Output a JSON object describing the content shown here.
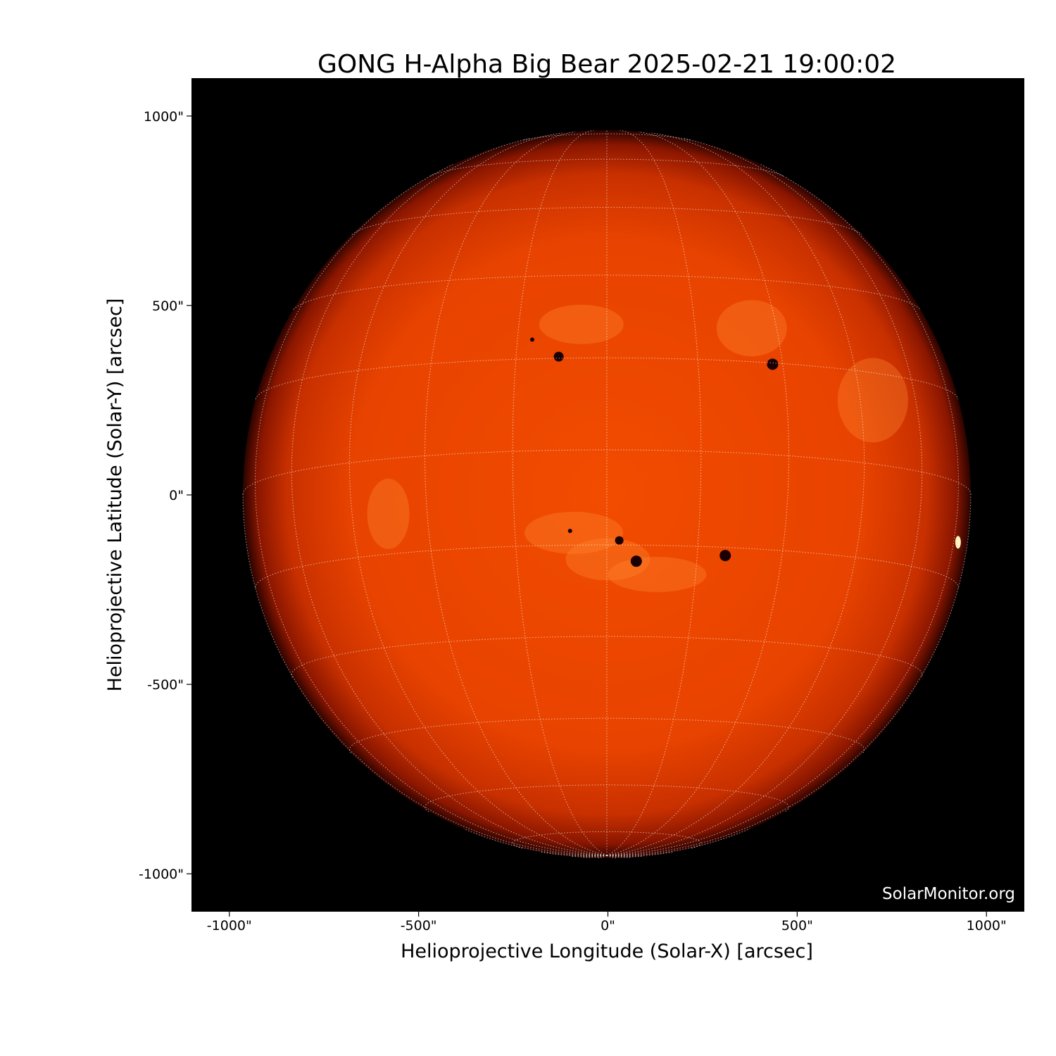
{
  "chart_data": {
    "type": "image",
    "title": "GONG H-Alpha Big Bear 2025-02-21 19:00:02",
    "xlabel": "Helioprojective Longitude (Solar-X) [arcsec]",
    "ylabel": "Helioprojective Latitude (Solar-Y) [arcsec]",
    "xlim": [
      -1100,
      1100
    ],
    "ylim": [
      -1100,
      1100
    ],
    "x_ticks": [
      -1000,
      -500,
      0,
      500,
      1000
    ],
    "y_ticks": [
      -1000,
      -500,
      0,
      500,
      1000
    ],
    "x_tick_labels": [
      "-1000\"",
      "-500\"",
      "0\"",
      "500\"",
      "1000\""
    ],
    "y_tick_labels": [
      "-1000\"",
      "-500\"",
      "0\"",
      "500\"",
      "1000\""
    ],
    "grid": true,
    "grid_style": "heliographic lat/lon, dotted white",
    "colormap": "red-orange H-alpha",
    "colors": {
      "background": "#000000",
      "disk_center": "#f04a00",
      "disk_limb": "#5a0800"
    },
    "watermark": "SolarMonitor.org"
  }
}
